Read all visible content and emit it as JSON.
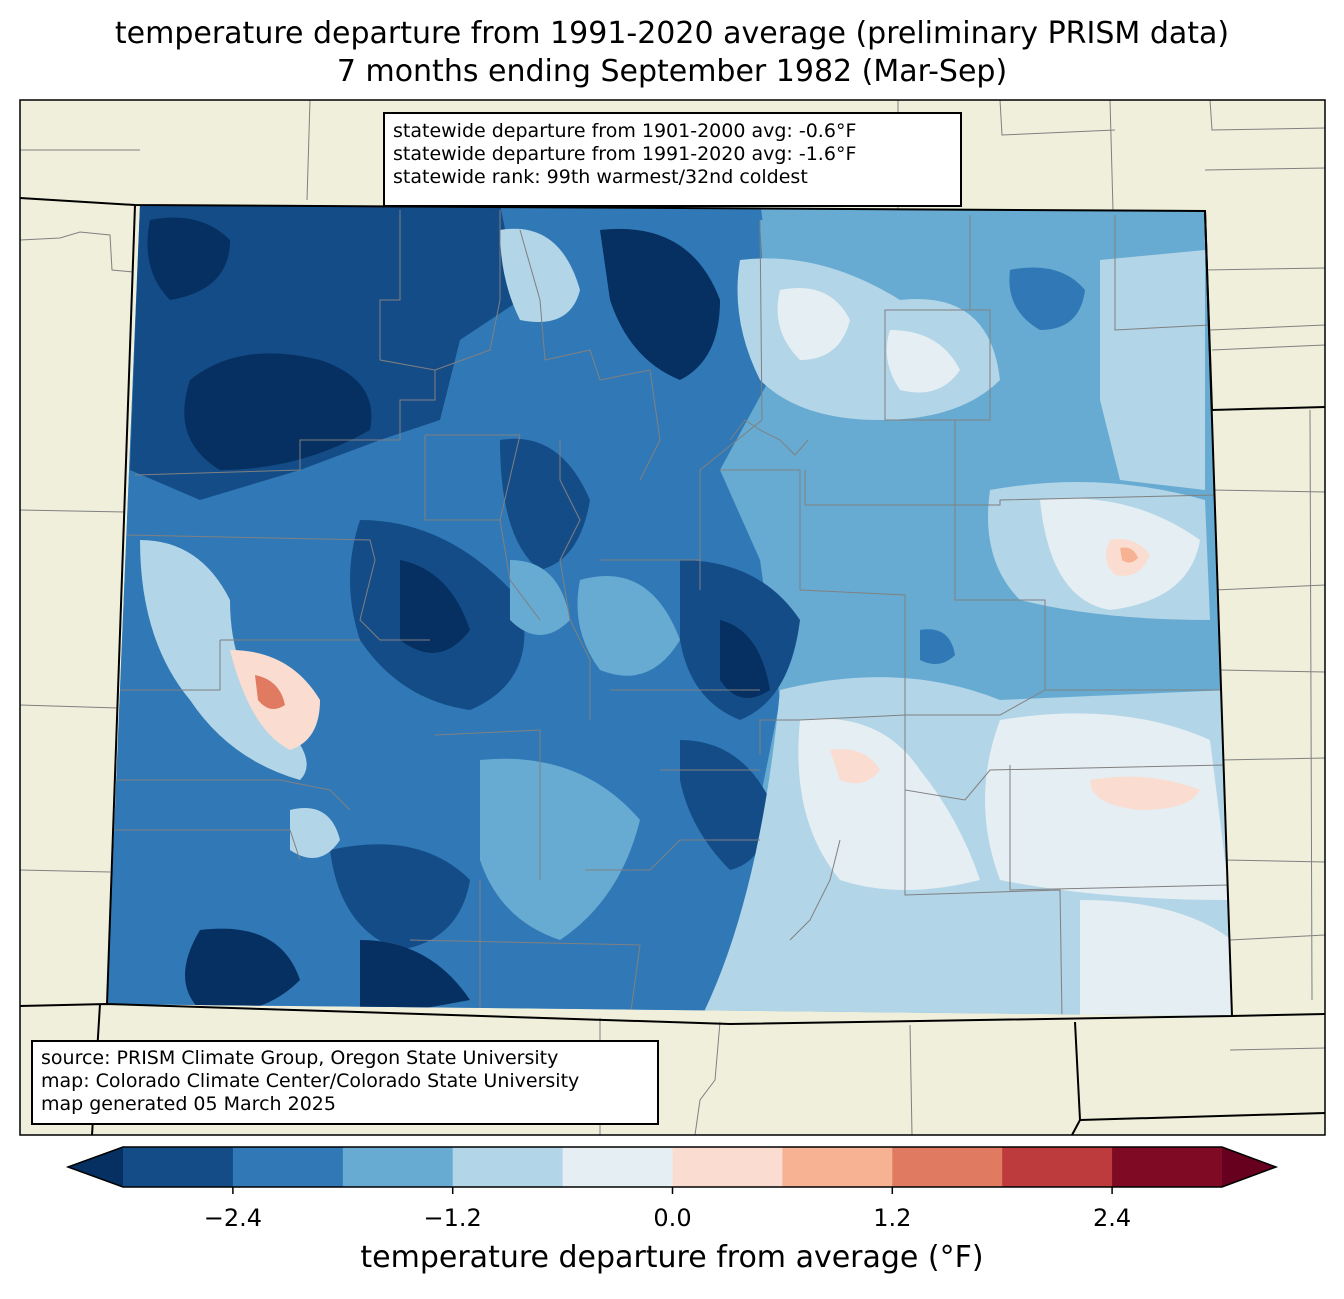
{
  "title_line1": "temperature departure from 1991-2020 average (preliminary PRISM data)",
  "title_line2": "7 months ending September 1982 (Mar-Sep)",
  "stats_box": {
    "line1": "statewide departure from 1901-2000 avg: -0.6°F",
    "line2": "statewide departure from 1991-2020 avg: -1.6°F",
    "line3": "statewide rank: 99th warmest/32nd coldest"
  },
  "source_box": {
    "line1": "source: PRISM Climate Group, Oregon State University",
    "line2": "map: Colorado Climate Center/Colorado State University",
    "line3": "map generated 05 March 2025"
  },
  "colorbar": {
    "label": "temperature departure from average (°F)",
    "ticks": [
      "−2.4",
      "−1.2",
      "0.0",
      "1.2",
      "2.4"
    ],
    "tick_values": [
      -2.4,
      -1.2,
      0.0,
      1.2,
      2.4
    ],
    "min": -3.0,
    "max": 3.0,
    "bin_edges": [
      -3.0,
      -2.4,
      -1.8,
      -1.2,
      -0.6,
      0.0,
      0.6,
      1.2,
      1.8,
      2.4,
      3.0
    ],
    "colors": [
      "#053061",
      "#144c87",
      "#3079b6",
      "#67abd2",
      "#b2d5e7",
      "#e5eef3",
      "#faddd0",
      "#f6b293",
      "#e07b62",
      "#bd3a3d",
      "#7e0a24",
      "#67001f"
    ]
  },
  "map_colors": {
    "land_outside": "#efefdc",
    "county_lines": "#808080",
    "state_lines": "#000000"
  }
}
